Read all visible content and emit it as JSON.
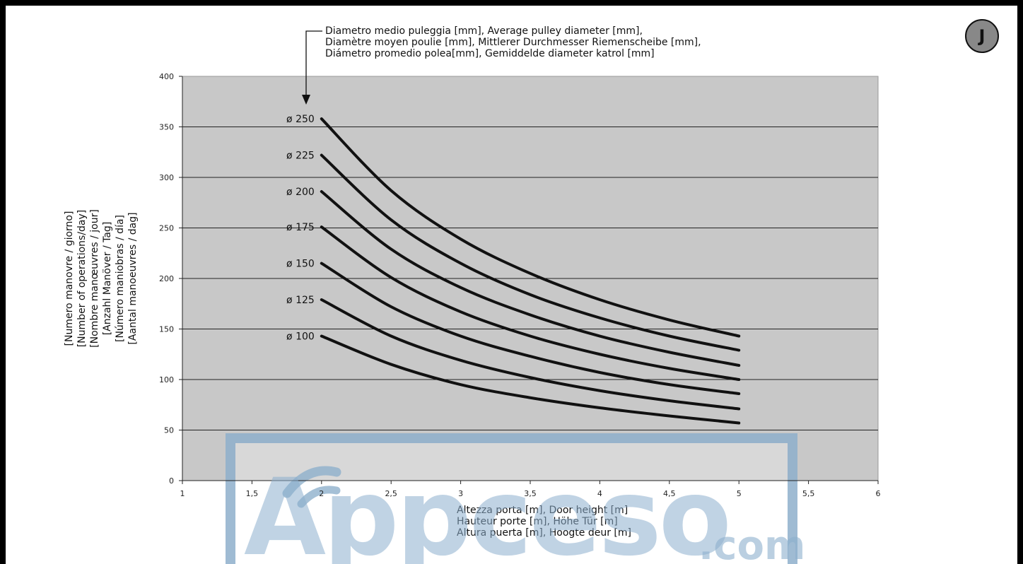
{
  "badge": "J",
  "annotation": [
    "Diametro medio puleggia [mm], Average pulley diameter [mm],",
    "Diamètre moyen poulie [mm], Mittlerer Durchmesser Riemenscheibe [mm],",
    "Diámetro promedio polea[mm], Gemiddelde diameter katrol [mm]"
  ],
  "watermark": {
    "text": "Appceso",
    "suffix": ".com"
  },
  "colors": {
    "plot_bg": "#c8c8c8",
    "curve": "#111111",
    "watermark": "#8fb0cc"
  },
  "chart_data": {
    "type": "line",
    "title": "",
    "xlabel": [
      "Altezza porta [m], Door height [m]",
      "Hauteur porte [m], Höhe Tür [m]",
      "Altura puerta [m], Hoogte deur [m]"
    ],
    "ylabel": [
      "[Numero manovre / giorno]",
      "[Number of operations/day]",
      "[Nombre manœuvres / jour]",
      "[Anzahl Manöver / Tag]",
      "[Número maniobras / día]",
      "[Aantal manoeuvres / dag]"
    ],
    "xlim": [
      1,
      6
    ],
    "ylim": [
      0,
      400
    ],
    "xticks": [
      "1",
      "1,5",
      "2",
      "2,5",
      "3",
      "3,5",
      "4",
      "4,5",
      "5",
      "5,5",
      "6"
    ],
    "yticks": [
      "0",
      "50",
      "100",
      "150",
      "200",
      "250",
      "300",
      "350",
      "400"
    ],
    "grid": "horizontal",
    "x": [
      2,
      2.5,
      3,
      3.5,
      4,
      4.5,
      5
    ],
    "series": [
      {
        "name": "ø 250",
        "values": [
          358,
          287,
          239,
          205,
          179,
          159,
          143
        ]
      },
      {
        "name": "ø 225",
        "values": [
          322,
          258,
          215,
          184,
          161,
          143,
          129
        ]
      },
      {
        "name": "ø 200",
        "values": [
          286,
          229,
          191,
          164,
          143,
          127,
          114
        ]
      },
      {
        "name": "ø 175",
        "values": [
          251,
          201,
          167,
          143,
          125,
          111,
          100
        ]
      },
      {
        "name": "ø 150",
        "values": [
          215,
          172,
          143,
          123,
          107,
          95,
          86
        ]
      },
      {
        "name": "ø 125",
        "values": [
          179,
          143,
          119,
          102,
          89,
          79,
          71
        ]
      },
      {
        "name": "ø 100",
        "values": [
          143,
          115,
          95,
          82,
          72,
          64,
          57
        ]
      }
    ]
  }
}
